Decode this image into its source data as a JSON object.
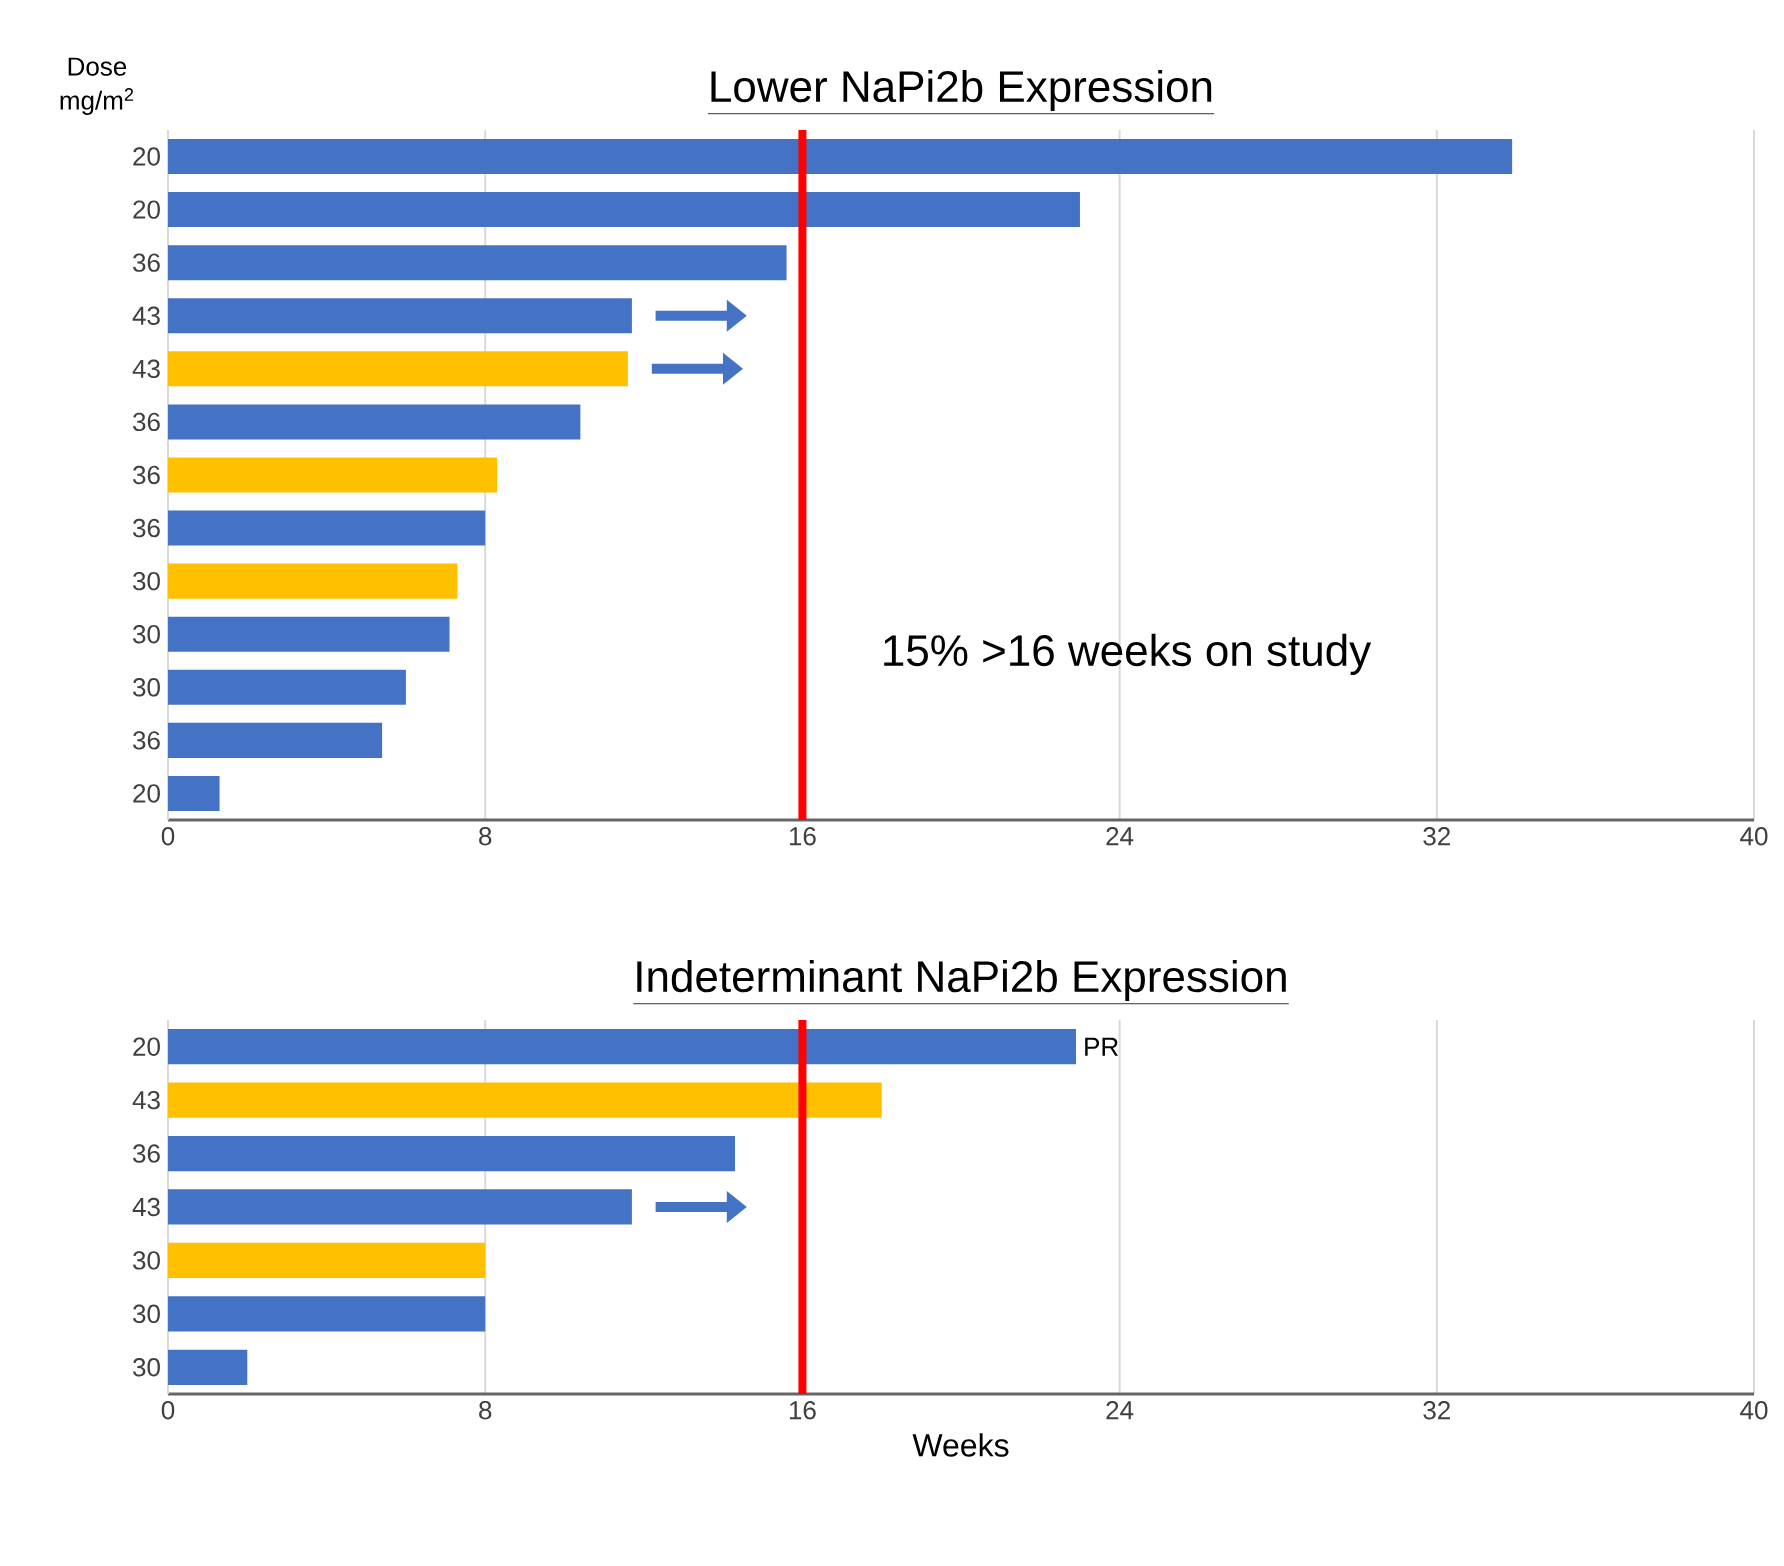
{
  "chart_data": [
    {
      "type": "bar",
      "orientation": "horizontal",
      "title": "Lower NaPi2b Expression",
      "ylabel": "Dose mg/m$^{2}$",
      "categories": [
        "20",
        "20",
        "36",
        "43",
        "43",
        "36",
        "36",
        "36",
        "30",
        "30",
        "30",
        "36",
        "20"
      ],
      "values": [
        33.9,
        23.0,
        15.6,
        11.7,
        11.6,
        10.4,
        8.3,
        8.0,
        7.3,
        7.1,
        6.0,
        5.4,
        1.3
      ],
      "colors": [
        "#4472c4",
        "#4472c4",
        "#4472c4",
        "#4472c4",
        "#ffc000",
        "#4472c4",
        "#ffc000",
        "#4472c4",
        "#ffc000",
        "#4472c4",
        "#4472c4",
        "#4472c4",
        "#4472c4"
      ],
      "xlim": [
        0,
        40
      ],
      "xticks": [
        0,
        8,
        16,
        24,
        32,
        40
      ],
      "grid": "x",
      "ref_lines": [
        {
          "axis": "x",
          "value": 16,
          "color": "#ff0000"
        }
      ],
      "annotations": [
        "15% >16 weeks on study"
      ]
    },
    {
      "type": "bar",
      "orientation": "horizontal",
      "title": "Indeterminant NaPi2b Expression",
      "xlabel": "Weeks",
      "categories": [
        "20",
        "43",
        "36",
        "43",
        "30",
        "30",
        "30"
      ],
      "values": [
        22.9,
        18.0,
        14.3,
        11.7,
        8.0,
        8.0,
        2.0
      ],
      "colors": [
        "#4472c4",
        "#ffc000",
        "#4472c4",
        "#4472c4",
        "#ffc000",
        "#4472c4",
        "#4472c4"
      ],
      "xlim": [
        0,
        40
      ],
      "xticks": [
        0,
        8,
        16,
        24,
        32,
        40
      ],
      "grid": "x",
      "ref_lines": [
        {
          "axis": "x",
          "value": 16,
          "color": "#ff0000"
        }
      ],
      "annotations": [
        {
          "text": "PR",
          "x": 22.9,
          "y": "20"
        }
      ]
    }
  ]
}
